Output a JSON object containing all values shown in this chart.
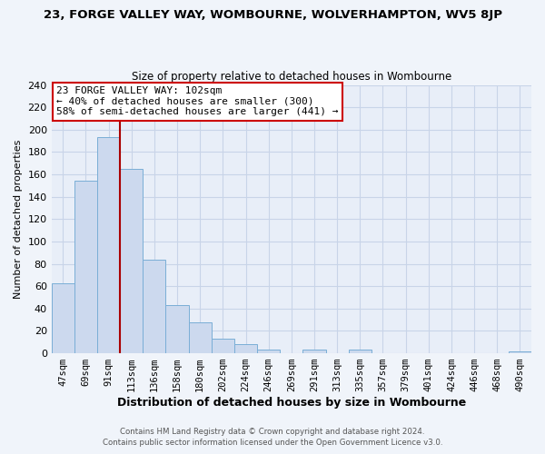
{
  "title_line1": "23, FORGE VALLEY WAY, WOMBOURNE, WOLVERHAMPTON, WV5 8JP",
  "title_line2": "Size of property relative to detached houses in Wombourne",
  "xlabel": "Distribution of detached houses by size in Wombourne",
  "ylabel": "Number of detached properties",
  "bar_labels": [
    "47sqm",
    "69sqm",
    "91sqm",
    "113sqm",
    "136sqm",
    "158sqm",
    "180sqm",
    "202sqm",
    "224sqm",
    "246sqm",
    "269sqm",
    "291sqm",
    "313sqm",
    "335sqm",
    "357sqm",
    "379sqm",
    "401sqm",
    "424sqm",
    "446sqm",
    "468sqm",
    "490sqm"
  ],
  "bar_values": [
    63,
    154,
    193,
    165,
    84,
    43,
    28,
    13,
    8,
    3,
    0,
    3,
    0,
    3,
    0,
    0,
    0,
    0,
    0,
    0,
    2
  ],
  "bar_color": "#ccd9ee",
  "bar_edge_color": "#7aaed6",
  "vline_color": "#aa0000",
  "annotation_text": "23 FORGE VALLEY WAY: 102sqm\n← 40% of detached houses are smaller (300)\n58% of semi-detached houses are larger (441) →",
  "annotation_box_facecolor": "#ffffff",
  "annotation_box_edge": "#cc0000",
  "ylim": [
    0,
    240
  ],
  "yticks": [
    0,
    20,
    40,
    60,
    80,
    100,
    120,
    140,
    160,
    180,
    200,
    220,
    240
  ],
  "grid_color": "#c8d4e8",
  "plot_bg_color": "#e8eef8",
  "fig_bg_color": "#f0f4fa",
  "footer_line1": "Contains HM Land Registry data © Crown copyright and database right 2024.",
  "footer_line2": "Contains public sector information licensed under the Open Government Licence v3.0."
}
